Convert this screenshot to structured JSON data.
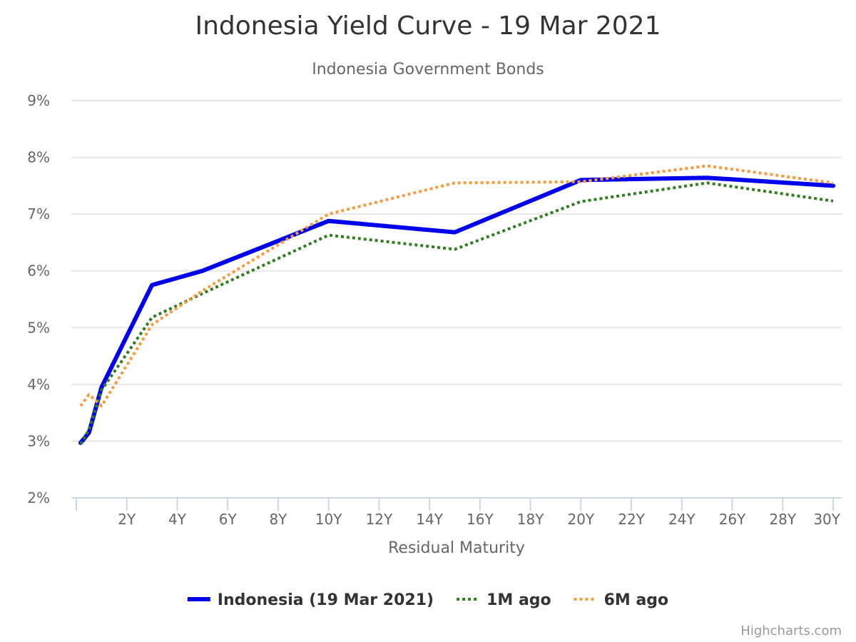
{
  "chart_data": {
    "type": "line",
    "title": "Indonesia Yield Curve - 19 Mar 2021",
    "subtitle": "Indonesia Government Bonds",
    "xlabel": "Residual Maturity",
    "ylabel": "",
    "xlim": [
      0,
      30
    ],
    "ylim": [
      2,
      9
    ],
    "x_ticks": [
      2,
      4,
      6,
      8,
      10,
      12,
      14,
      16,
      18,
      20,
      22,
      24,
      26,
      28,
      30
    ],
    "x_tick_labels": [
      "2Y",
      "4Y",
      "6Y",
      "8Y",
      "10Y",
      "12Y",
      "14Y",
      "16Y",
      "18Y",
      "20Y",
      "22Y",
      "24Y",
      "26Y",
      "28Y",
      "30Y"
    ],
    "y_ticks": [
      2,
      3,
      4,
      5,
      6,
      7,
      8,
      9
    ],
    "y_tick_labels": [
      "2%",
      "3%",
      "4%",
      "5%",
      "6%",
      "7%",
      "8%",
      "9%"
    ],
    "grid": true,
    "legend_position": "bottom-center",
    "series": [
      {
        "name": "Indonesia (19 Mar 2021)",
        "color": "#0000ee",
        "style": "solid",
        "points": [
          [
            0.17,
            2.97
          ],
          [
            0.5,
            3.15
          ],
          [
            1,
            3.95
          ],
          [
            3,
            5.75
          ],
          [
            5,
            6.0
          ],
          [
            10,
            6.88
          ],
          [
            15,
            6.68
          ],
          [
            20,
            7.6
          ],
          [
            25,
            7.64
          ],
          [
            30,
            7.5
          ]
        ]
      },
      {
        "name": "1M ago",
        "color": "#2e7d1f",
        "style": "dotted",
        "points": [
          [
            0.17,
            2.95
          ],
          [
            0.5,
            3.2
          ],
          [
            1,
            3.9
          ],
          [
            3,
            5.18
          ],
          [
            5,
            5.6
          ],
          [
            10,
            6.63
          ],
          [
            15,
            6.38
          ],
          [
            20,
            7.22
          ],
          [
            25,
            7.55
          ],
          [
            30,
            7.23
          ]
        ]
      },
      {
        "name": "6M ago",
        "color": "#f79a3e",
        "style": "dotted",
        "points": [
          [
            0.17,
            3.62
          ],
          [
            0.5,
            3.82
          ],
          [
            1,
            3.62
          ],
          [
            3,
            5.05
          ],
          [
            5,
            5.65
          ],
          [
            10,
            7.0
          ],
          [
            15,
            7.55
          ],
          [
            20,
            7.57
          ],
          [
            25,
            7.85
          ],
          [
            30,
            7.55
          ]
        ]
      }
    ],
    "credits": "Highcharts.com"
  }
}
